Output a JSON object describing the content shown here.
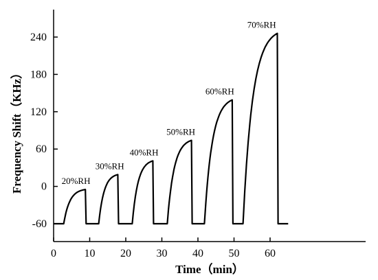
{
  "chart_data": {
    "type": "line",
    "title": "",
    "xlabel": "Time（min）",
    "ylabel": "Frequency Shift（KHz）",
    "xlim": [
      0,
      66
    ],
    "ylim": [
      -60,
      265
    ],
    "x_ticks": [
      0,
      10,
      20,
      30,
      40,
      50,
      60
    ],
    "y_ticks": [
      -60,
      0,
      60,
      120,
      180,
      240
    ],
    "grid": false,
    "legend": "none",
    "baseline": -60,
    "cycles": [
      {
        "label": "20%RH",
        "on": 2.8,
        "off": 8.8,
        "peak": -5
      },
      {
        "label": "30%RH",
        "on": 12.5,
        "off": 17.8,
        "peak": 19
      },
      {
        "label": "40%RH",
        "on": 21.8,
        "off": 27.5,
        "peak": 41
      },
      {
        "label": "50%RH",
        "on": 31.5,
        "off": 38.2,
        "peak": 74
      },
      {
        "label": "60%RH",
        "on": 41.8,
        "off": 49.5,
        "peak": 139
      },
      {
        "label": "70%RH",
        "on": 52.5,
        "off": 62.0,
        "peak": 246
      }
    ],
    "x_end": 65,
    "color": "#000000"
  }
}
